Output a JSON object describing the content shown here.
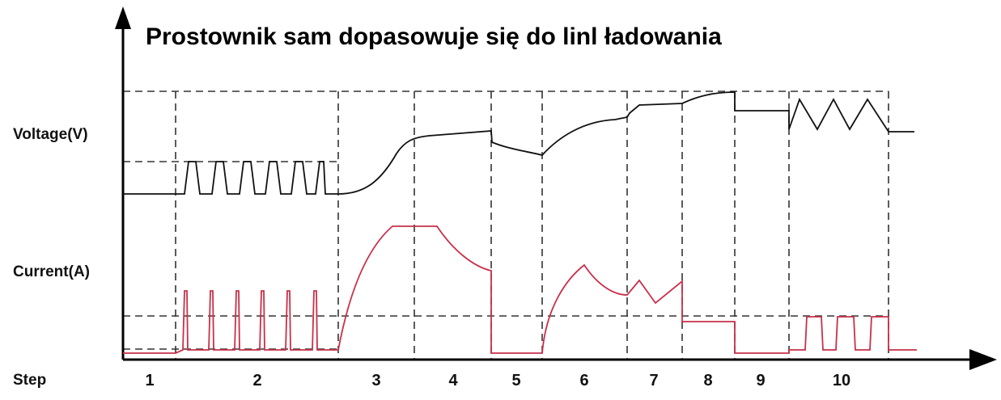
{
  "title": "Prostownik sam dopasowuje się do linl ładowania",
  "axis_labels": {
    "voltage": "Voltage(V)",
    "current": "Current(A)",
    "step": "Step"
  },
  "steps": [
    "1",
    "2",
    "3",
    "4",
    "5",
    "6",
    "7",
    "8",
    "9",
    "10"
  ]
}
